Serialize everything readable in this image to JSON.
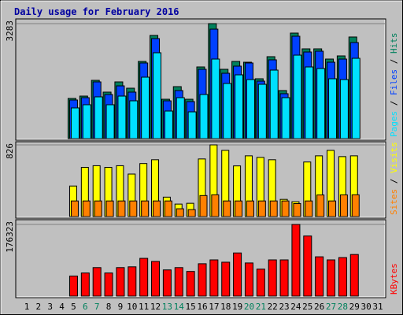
{
  "chart_data": {
    "type": "bar",
    "title": "Daily usage for February 2016",
    "categories": [
      "1",
      "2",
      "3",
      "4",
      "5",
      "6",
      "7",
      "8",
      "9",
      "10",
      "11",
      "12",
      "13",
      "14",
      "15",
      "16",
      "17",
      "18",
      "19",
      "20",
      "21",
      "22",
      "23",
      "24",
      "25",
      "26",
      "27",
      "28",
      "29",
      "30",
      "31"
    ],
    "weekends": [
      "6",
      "7",
      "13",
      "14",
      "20",
      "21",
      "27",
      "28"
    ],
    "weekday_color": "#000000",
    "weekend_color": "#00805c",
    "legend_separator": " / ",
    "panels": [
      {
        "ylim": [
          0,
          3283
        ],
        "yticks": [
          3283
        ],
        "grid": true,
        "series": [
          {
            "name": "Hits",
            "color": "#00805c",
            "values": [
              null,
              null,
              null,
              null,
              1147,
              1214,
              1664,
              1327,
              1619,
              1439,
              2204,
              2946,
              1124,
              1484,
              1124,
              2046,
              3283,
              1979,
              2204,
              2181,
              1709,
              2339,
              1372,
              3013,
              2563,
              2563,
              2271,
              2361,
              2901,
              null,
              null
            ]
          },
          {
            "name": "Files",
            "color": "#0040ff",
            "values": [
              null,
              null,
              null,
              null,
              1102,
              1169,
              1619,
              1259,
              1506,
              1327,
              2159,
              2856,
              1079,
              1372,
              1057,
              1979,
              3125,
              1866,
              2069,
              2159,
              1641,
              2249,
              1282,
              2923,
              2473,
              2496,
              2181,
              2271,
              2743,
              null,
              null
            ]
          },
          {
            "name": "Pages",
            "color": "#00e0ff",
            "values": [
              null,
              null,
              null,
              null,
              877,
              967,
              1192,
              967,
              1214,
              1079,
              1754,
              2451,
              787,
              1169,
              764,
              1259,
              2271,
              1574,
              1821,
              1686,
              1551,
              1956,
              1169,
              2383,
              2046,
              2001,
              1709,
              1686,
              2293,
              null,
              null
            ]
          }
        ]
      },
      {
        "ylim": [
          0,
          826
        ],
        "yticks": [
          826
        ],
        "grid": true,
        "series": [
          {
            "name": "Visits",
            "color": "#ffff00",
            "values": [
              null,
              null,
              null,
              null,
              352,
              567,
              586,
              567,
              586,
              490,
              611,
              655,
              224,
              144,
              153,
              664,
              826,
              763,
              584,
              700,
              682,
              655,
              198,
              171,
              629,
              700,
              763,
              691,
              700,
              null,
              null
            ]
          },
          {
            "name": "Sites",
            "color": "#ff8000",
            "values": [
              null,
              null,
              null,
              null,
              180,
              180,
              180,
              180,
              180,
              180,
              180,
              180,
              180,
              90,
              80,
              242,
              251,
              180,
              180,
              180,
              180,
              180,
              180,
              150,
              180,
              249,
              180,
              250,
              251,
              null,
              null
            ]
          }
        ]
      },
      {
        "ylim": [
          0,
          176323
        ],
        "yticks": [
          176323
        ],
        "grid": true,
        "series": [
          {
            "name": "KBytes",
            "color": "#ff0000",
            "values": [
              null,
              null,
              null,
              null,
              49294,
              56879,
              70151,
              56879,
              70151,
              72046,
              92901,
              85317,
              64462,
              70151,
              60670,
              79630,
              89110,
              83421,
              106172,
              81526,
              66358,
              89110,
              89110,
              176323,
              147884,
              96693,
              89110,
              94797,
              102381,
              null,
              null
            ]
          }
        ]
      }
    ]
  }
}
